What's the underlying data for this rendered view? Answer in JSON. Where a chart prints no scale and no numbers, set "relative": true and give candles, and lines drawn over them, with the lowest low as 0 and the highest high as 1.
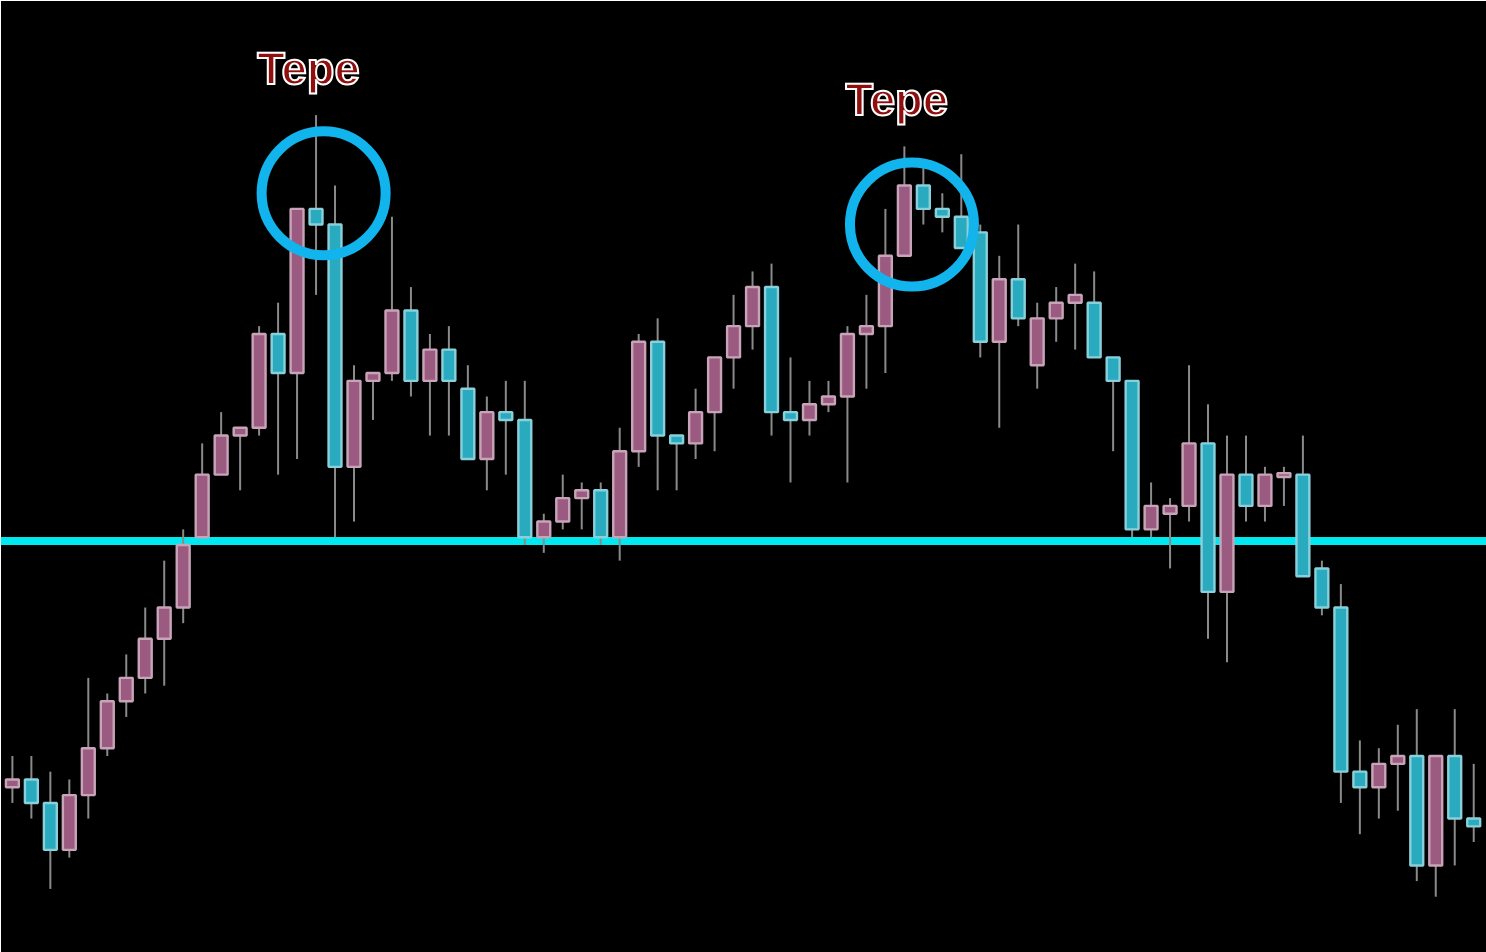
{
  "chart_data": {
    "type": "candlestick",
    "relative": true,
    "grid": false,
    "categories": [
      null,
      null,
      null,
      null,
      null,
      null,
      null,
      null,
      null,
      null,
      null,
      null,
      null,
      null,
      null,
      null,
      null,
      null,
      null,
      null,
      null,
      null,
      null,
      null,
      null,
      null,
      null,
      null,
      null,
      null,
      null,
      null,
      null,
      null,
      null,
      null,
      null,
      null,
      null,
      null,
      null,
      null,
      null,
      null,
      null,
      null,
      null,
      null,
      null,
      null,
      null,
      null,
      null,
      null,
      null,
      null,
      null,
      null,
      null,
      null,
      null,
      null,
      null,
      null,
      null,
      null,
      null,
      null,
      null,
      null,
      null,
      null,
      null,
      null,
      null,
      null,
      null,
      null
    ],
    "ohlc": [
      [
        0.14,
        0.18,
        0.12,
        0.15
      ],
      [
        0.15,
        0.18,
        0.1,
        0.12
      ],
      [
        0.12,
        0.16,
        0.01,
        0.06
      ],
      [
        0.06,
        0.15,
        0.05,
        0.13
      ],
      [
        0.13,
        0.28,
        0.1,
        0.19
      ],
      [
        0.19,
        0.26,
        0.18,
        0.25
      ],
      [
        0.25,
        0.31,
        0.23,
        0.28
      ],
      [
        0.28,
        0.37,
        0.26,
        0.33
      ],
      [
        0.33,
        0.43,
        0.27,
        0.37
      ],
      [
        0.37,
        0.47,
        0.35,
        0.45
      ],
      [
        0.46,
        0.58,
        0.46,
        0.54
      ],
      [
        0.54,
        0.62,
        0.54,
        0.59
      ],
      [
        0.59,
        0.6,
        0.52,
        0.6
      ],
      [
        0.6,
        0.73,
        0.59,
        0.72
      ],
      [
        0.72,
        0.76,
        0.54,
        0.67
      ],
      [
        0.67,
        0.88,
        0.56,
        0.88
      ],
      [
        0.88,
        1.0,
        0.77,
        0.86
      ],
      [
        0.86,
        0.91,
        0.46,
        0.55
      ],
      [
        0.55,
        0.68,
        0.48,
        0.66
      ],
      [
        0.66,
        0.67,
        0.61,
        0.67
      ],
      [
        0.67,
        0.87,
        0.66,
        0.75
      ],
      [
        0.75,
        0.78,
        0.64,
        0.66
      ],
      [
        0.66,
        0.72,
        0.59,
        0.7
      ],
      [
        0.7,
        0.73,
        0.59,
        0.66
      ],
      [
        0.65,
        0.68,
        0.56,
        0.56
      ],
      [
        0.56,
        0.64,
        0.52,
        0.62
      ],
      [
        0.62,
        0.66,
        0.54,
        0.61
      ],
      [
        0.61,
        0.66,
        0.45,
        0.46
      ],
      [
        0.46,
        0.49,
        0.44,
        0.48
      ],
      [
        0.48,
        0.54,
        0.47,
        0.51
      ],
      [
        0.51,
        0.53,
        0.47,
        0.52
      ],
      [
        0.52,
        0.53,
        0.45,
        0.46
      ],
      [
        0.46,
        0.6,
        0.43,
        0.57
      ],
      [
        0.57,
        0.72,
        0.55,
        0.71
      ],
      [
        0.71,
        0.74,
        0.52,
        0.59
      ],
      [
        0.59,
        0.59,
        0.52,
        0.58
      ],
      [
        0.58,
        0.65,
        0.56,
        0.62
      ],
      [
        0.62,
        0.69,
        0.57,
        0.69
      ],
      [
        0.69,
        0.77,
        0.65,
        0.73
      ],
      [
        0.73,
        0.8,
        0.7,
        0.78
      ],
      [
        0.78,
        0.81,
        0.59,
        0.62
      ],
      [
        0.62,
        0.69,
        0.53,
        0.61
      ],
      [
        0.61,
        0.66,
        0.59,
        0.63
      ],
      [
        0.63,
        0.66,
        0.62,
        0.64
      ],
      [
        0.64,
        0.73,
        0.53,
        0.72
      ],
      [
        0.72,
        0.77,
        0.65,
        0.73
      ],
      [
        0.73,
        0.88,
        0.67,
        0.82
      ],
      [
        0.82,
        0.96,
        0.82,
        0.91
      ],
      [
        0.91,
        0.94,
        0.86,
        0.88
      ],
      [
        0.88,
        0.9,
        0.85,
        0.87
      ],
      [
        0.87,
        0.95,
        0.83,
        0.83
      ],
      [
        0.85,
        0.86,
        0.69,
        0.71
      ],
      [
        0.71,
        0.82,
        0.6,
        0.79
      ],
      [
        0.79,
        0.86,
        0.73,
        0.74
      ],
      [
        0.68,
        0.76,
        0.65,
        0.74
      ],
      [
        0.74,
        0.78,
        0.71,
        0.76
      ],
      [
        0.76,
        0.81,
        0.7,
        0.77
      ],
      [
        0.76,
        0.8,
        0.69,
        0.69
      ],
      [
        0.69,
        0.69,
        0.57,
        0.66
      ],
      [
        0.66,
        0.66,
        0.46,
        0.47
      ],
      [
        0.47,
        0.53,
        0.46,
        0.5
      ],
      [
        0.49,
        0.51,
        0.42,
        0.5
      ],
      [
        0.5,
        0.68,
        0.48,
        0.58
      ],
      [
        0.58,
        0.63,
        0.33,
        0.39
      ],
      [
        0.39,
        0.59,
        0.3,
        0.54
      ],
      [
        0.54,
        0.59,
        0.48,
        0.5
      ],
      [
        0.5,
        0.55,
        0.48,
        0.54
      ],
      [
        0.537,
        0.55,
        0.5,
        0.542
      ],
      [
        0.54,
        0.59,
        0.41,
        0.41
      ],
      [
        0.42,
        0.43,
        0.36,
        0.37
      ],
      [
        0.37,
        0.4,
        0.12,
        0.16
      ],
      [
        0.16,
        0.2,
        0.08,
        0.14
      ],
      [
        0.14,
        0.19,
        0.1,
        0.17
      ],
      [
        0.17,
        0.22,
        0.11,
        0.18
      ],
      [
        0.18,
        0.24,
        0.02,
        0.04
      ],
      [
        0.04,
        0.18,
        0.0,
        0.18
      ],
      [
        0.18,
        0.24,
        0.04,
        0.1
      ],
      [
        0.1,
        0.17,
        0.07,
        0.09
      ]
    ],
    "colors": [
      "#9b5b80",
      "#2aaabf",
      "#2aaabf",
      "#9b5b80",
      "#9b5b80",
      "#9b5b80",
      "#9b5b80",
      "#9b5b80",
      "#9b5b80",
      "#9b5b80",
      "#9b5b80",
      "#9b5b80",
      "#9b5b80",
      "#9b5b80",
      "#2aaabf",
      "#9b5b80",
      "#2aaabf",
      "#2aaabf",
      "#9b5b80",
      "#9b5b80",
      "#9b5b80",
      "#2aaabf",
      "#9b5b80",
      "#2aaabf",
      "#2aaabf",
      "#9b5b80",
      "#2aaabf",
      "#2aaabf",
      "#9b5b80",
      "#9b5b80",
      "#9b5b80",
      "#2aaabf",
      "#9b5b80",
      "#9b5b80",
      "#2aaabf",
      "#2aaabf",
      "#9b5b80",
      "#9b5b80",
      "#9b5b80",
      "#9b5b80",
      "#2aaabf",
      "#2aaabf",
      "#9b5b80",
      "#9b5b80",
      "#9b5b80",
      "#9b5b80",
      "#9b5b80",
      "#9b5b80",
      "#2aaabf",
      "#2aaabf",
      "#2aaabf",
      "#2aaabf",
      "#9b5b80",
      "#2aaabf",
      "#9b5b80",
      "#9b5b80",
      "#9b5b80",
      "#2aaabf",
      "#2aaabf",
      "#2aaabf",
      "#9b5b80",
      "#9b5b80",
      "#9b5b80",
      "#2aaabf",
      "#9b5b80",
      "#2aaabf",
      "#9b5b80",
      "#9b5b80",
      "#2aaabf",
      "#2aaabf",
      "#2aaabf",
      "#2aaabf",
      "#9b5b80",
      "#9b5b80",
      "#2aaabf",
      "#9b5b80",
      "#2aaabf",
      "#2aaabf"
    ],
    "ref_lines": [
      {
        "axis": "y",
        "value": 0.455,
        "color": "#00e8f0",
        "line_style": "solid"
      }
    ],
    "annotations": [
      "Tepe",
      "Tepe"
    ]
  }
}
